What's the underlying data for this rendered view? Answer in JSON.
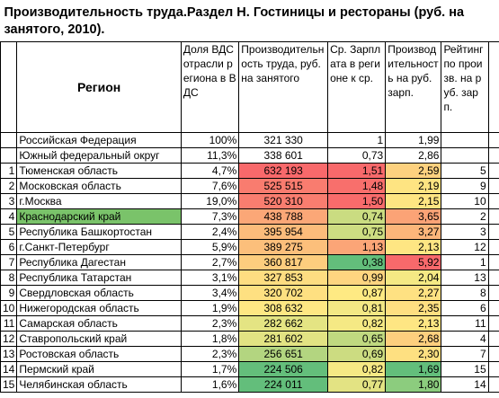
{
  "title": "Производительность труда.Раздел Н. Гостиницы и рестораны (руб. на занятого, 2010).",
  "header": {
    "region": "Регион",
    "share": "Доля ВДС отрасли региона в ВДС",
    "productivity": "Производительность труда, руб. на занятого",
    "wage_ratio": "Ср. Зарплата в регионе к ср.",
    "per_ruble": "Производительность на руб. зарп.",
    "rank": "Рейтинг по произв. на руб. зарп."
  },
  "rows": [
    {
      "region": "Российская Федерация",
      "share": "100%",
      "productivity": "321 330",
      "wage_ratio": "1",
      "per_ruble": "1,99"
    },
    {
      "region": "Южный федеральный  округ",
      "share": "11,3%",
      "productivity": "338 601",
      "wage_ratio": "0,73",
      "per_ruble": "2,86"
    },
    {
      "num": "1",
      "region": "Тюменская область",
      "share": "4,7%",
      "productivity": "632 193",
      "wage_ratio": "1,51",
      "per_ruble": "2,59",
      "rank": "5",
      "fill": {
        "productivity": "#f8696b",
        "wage_ratio": "#f8696b",
        "per_ruble": "#fdd17f"
      }
    },
    {
      "num": "2",
      "region": "Московская область",
      "share": "7,6%",
      "productivity": "525 515",
      "wage_ratio": "1,48",
      "per_ruble": "2,19",
      "rank": "9",
      "fill": {
        "productivity": "#f97c6f",
        "wage_ratio": "#f86f6c",
        "per_ruble": "#fee482"
      }
    },
    {
      "num": "3",
      "region": "г.Москва",
      "share": "19,0%",
      "productivity": "520 310",
      "wage_ratio": "1,50",
      "per_ruble": "2,15",
      "rank": "10",
      "fill": {
        "productivity": "#f97d6f",
        "wage_ratio": "#f86b6b",
        "per_ruble": "#fee582"
      }
    },
    {
      "num": "4",
      "region": "Краснодарский край",
      "share": "7,3%",
      "productivity": "438 788",
      "wage_ratio": "0,74",
      "per_ruble": "3,65",
      "rank": "2",
      "fill": {
        "region": "#7ac36a",
        "productivity": "#fba777",
        "wage_ratio": "#cadc81",
        "per_ruble": "#fba376"
      }
    },
    {
      "num": "5",
      "region": "Республика Башкортостан",
      "share": "2,4%",
      "productivity": "395 954",
      "wage_ratio": "0,75",
      "per_ruble": "3,27",
      "rank": "3",
      "fill": {
        "productivity": "#fcbc7b",
        "wage_ratio": "#cedd82",
        "per_ruble": "#fcb67a"
      }
    },
    {
      "num": "6",
      "region": "г.Санкт-Петербург",
      "share": "5,9%",
      "productivity": "389 275",
      "wage_ratio": "1,13",
      "per_ruble": "2,13",
      "rank": "12",
      "fill": {
        "productivity": "#fcbf7b",
        "wage_ratio": "#fba577",
        "per_ruble": "#fee683"
      }
    },
    {
      "num": "7",
      "region": "Республика Дагестан",
      "share": "2,7%",
      "productivity": "360 817",
      "wage_ratio": "0,38",
      "per_ruble": "5,92",
      "rank": "1",
      "fill": {
        "productivity": "#fdcd7e",
        "wage_ratio": "#63be7b",
        "per_ruble": "#f8696b"
      }
    },
    {
      "num": "8",
      "region": "Республика Татарстан",
      "share": "3,1%",
      "productivity": "327 853",
      "wage_ratio": "0,99",
      "per_ruble": "2,04",
      "rank": "13",
      "fill": {
        "productivity": "#fedd81",
        "wage_ratio": "#fed580",
        "per_ruble": "#f5e984"
      }
    },
    {
      "num": "9",
      "region": "Свердловская область",
      "share": "3,4%",
      "productivity": "320 702",
      "wage_ratio": "0,87",
      "per_ruble": "2,27",
      "rank": "8",
      "fill": {
        "productivity": "#fee081",
        "wage_ratio": "#feea83",
        "per_ruble": "#fee182"
      }
    },
    {
      "num": "10",
      "region": "Нижегородская область",
      "share": "1,9%",
      "productivity": "308 632",
      "wage_ratio": "0,81",
      "per_ruble": "2,35",
      "rank": "6",
      "fill": {
        "productivity": "#fee783",
        "wage_ratio": "#f3e884",
        "per_ruble": "#fedf81"
      }
    },
    {
      "num": "11",
      "region": "Самарская область",
      "share": "2,3%",
      "productivity": "282 662",
      "wage_ratio": "0,82",
      "per_ruble": "2,13",
      "rank": "11",
      "fill": {
        "productivity": "#e4e483",
        "wage_ratio": "#f5e984",
        "per_ruble": "#fee683"
      }
    },
    {
      "num": "12",
      "region": "Ставропольский край",
      "share": "1,8%",
      "productivity": "281 602",
      "wage_ratio": "0,65",
      "per_ruble": "2,68",
      "rank": "4",
      "fill": {
        "productivity": "#e2e383",
        "wage_ratio": "#c0d980",
        "per_ruble": "#fdcf7e"
      }
    },
    {
      "num": "13",
      "region": "Ростовская область",
      "share": "2,3%",
      "productivity": "256 651",
      "wage_ratio": "0,69",
      "per_ruble": "2,30",
      "rank": "7",
      "fill": {
        "productivity": "#b3d580",
        "wage_ratio": "#ccdc81",
        "per_ruble": "#fee081"
      }
    },
    {
      "num": "14",
      "region": "Пермский край",
      "share": "1,7%",
      "productivity": "224 506",
      "wage_ratio": "0,82",
      "per_ruble": "1,69",
      "rank": "15",
      "fill": {
        "productivity": "#64be7b",
        "wage_ratio": "#f5e984",
        "per_ruble": "#63be7b"
      }
    },
    {
      "num": "15",
      "region": "Челябинская область",
      "share": "1,6%",
      "productivity": "224 011",
      "wage_ratio": "0,77",
      "per_ruble": "1,80",
      "rank": "14",
      "fill": {
        "productivity": "#63be7b",
        "wage_ratio": "#e3e383",
        "per_ruble": "#8ccc7e"
      }
    }
  ]
}
